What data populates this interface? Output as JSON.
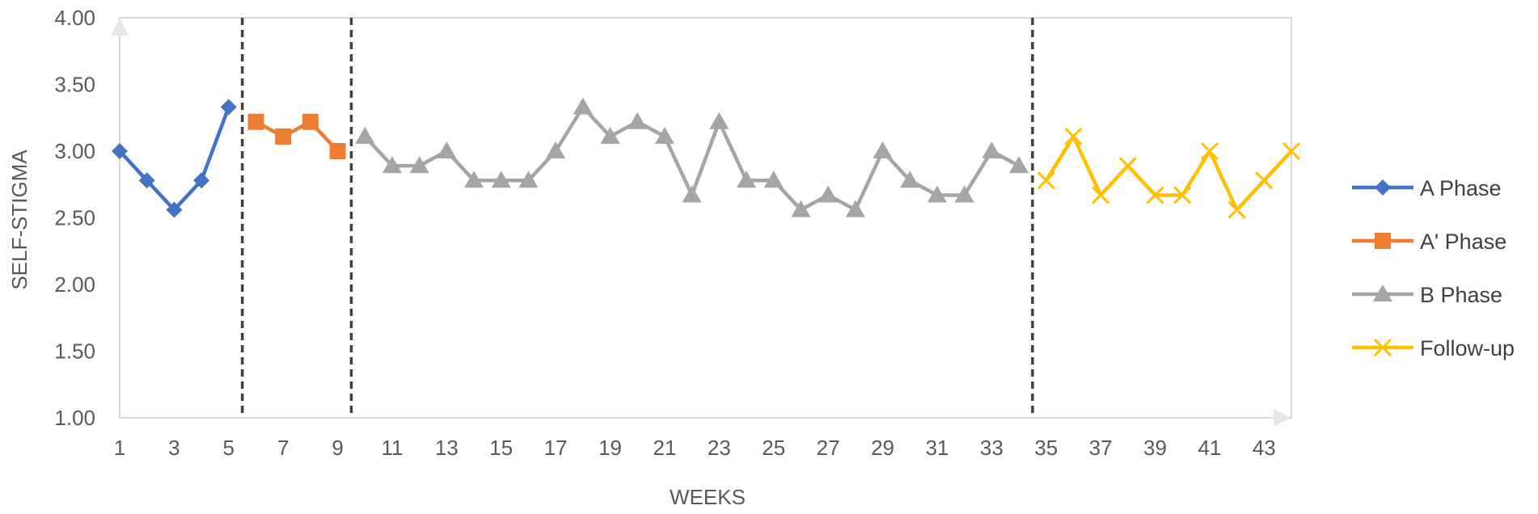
{
  "chart_data": {
    "type": "line",
    "title": "",
    "xlabel": "WEEKS",
    "ylabel": "SELF-STIGMA",
    "xlim": [
      1,
      44
    ],
    "ylim": [
      1.0,
      4.0
    ],
    "x_tick_labels": [
      "1",
      "3",
      "5",
      "7",
      "9",
      "11",
      "13",
      "15",
      "17",
      "19",
      "21",
      "23",
      "25",
      "27",
      "29",
      "31",
      "33",
      "35",
      "37",
      "39",
      "41",
      "43"
    ],
    "y_tick_labels": [
      "1.00",
      "1.50",
      "2.00",
      "2.50",
      "3.00",
      "3.50",
      "4.00"
    ],
    "grid": false,
    "legend_position": "right",
    "phase_change_lines": [
      5.5,
      9.5,
      34.5
    ],
    "series": [
      {
        "name": "A Phase",
        "color": "#4472C4",
        "marker": "diamond",
        "x": [
          1,
          2,
          3,
          4,
          5
        ],
        "y": [
          3.0,
          2.78,
          2.56,
          2.78,
          3.33
        ]
      },
      {
        "name": "A' Phase",
        "color": "#ED7D31",
        "marker": "square",
        "x": [
          6,
          7,
          8,
          9
        ],
        "y": [
          3.22,
          3.11,
          3.22,
          3.0
        ]
      },
      {
        "name": "B Phase",
        "color": "#A5A5A5",
        "marker": "triangle",
        "x": [
          10,
          11,
          12,
          13,
          14,
          15,
          16,
          17,
          18,
          19,
          20,
          21,
          22,
          23,
          24,
          25,
          26,
          27,
          28,
          29,
          30,
          31,
          32,
          33,
          34
        ],
        "y": [
          3.11,
          2.89,
          2.89,
          3.0,
          2.78,
          2.78,
          2.78,
          3.0,
          3.33,
          3.11,
          3.22,
          3.11,
          2.67,
          3.22,
          2.78,
          2.78,
          2.56,
          2.67,
          2.56,
          3.0,
          2.78,
          2.67,
          2.67,
          3.0,
          2.89
        ]
      },
      {
        "name": "Follow-up",
        "color": "#FFC000",
        "marker": "x",
        "x": [
          35,
          36,
          37,
          38,
          39,
          40,
          41,
          42,
          43,
          44
        ],
        "y": [
          2.78,
          3.11,
          2.67,
          2.89,
          2.67,
          2.67,
          3.0,
          2.56,
          2.78,
          3.0
        ]
      }
    ]
  }
}
